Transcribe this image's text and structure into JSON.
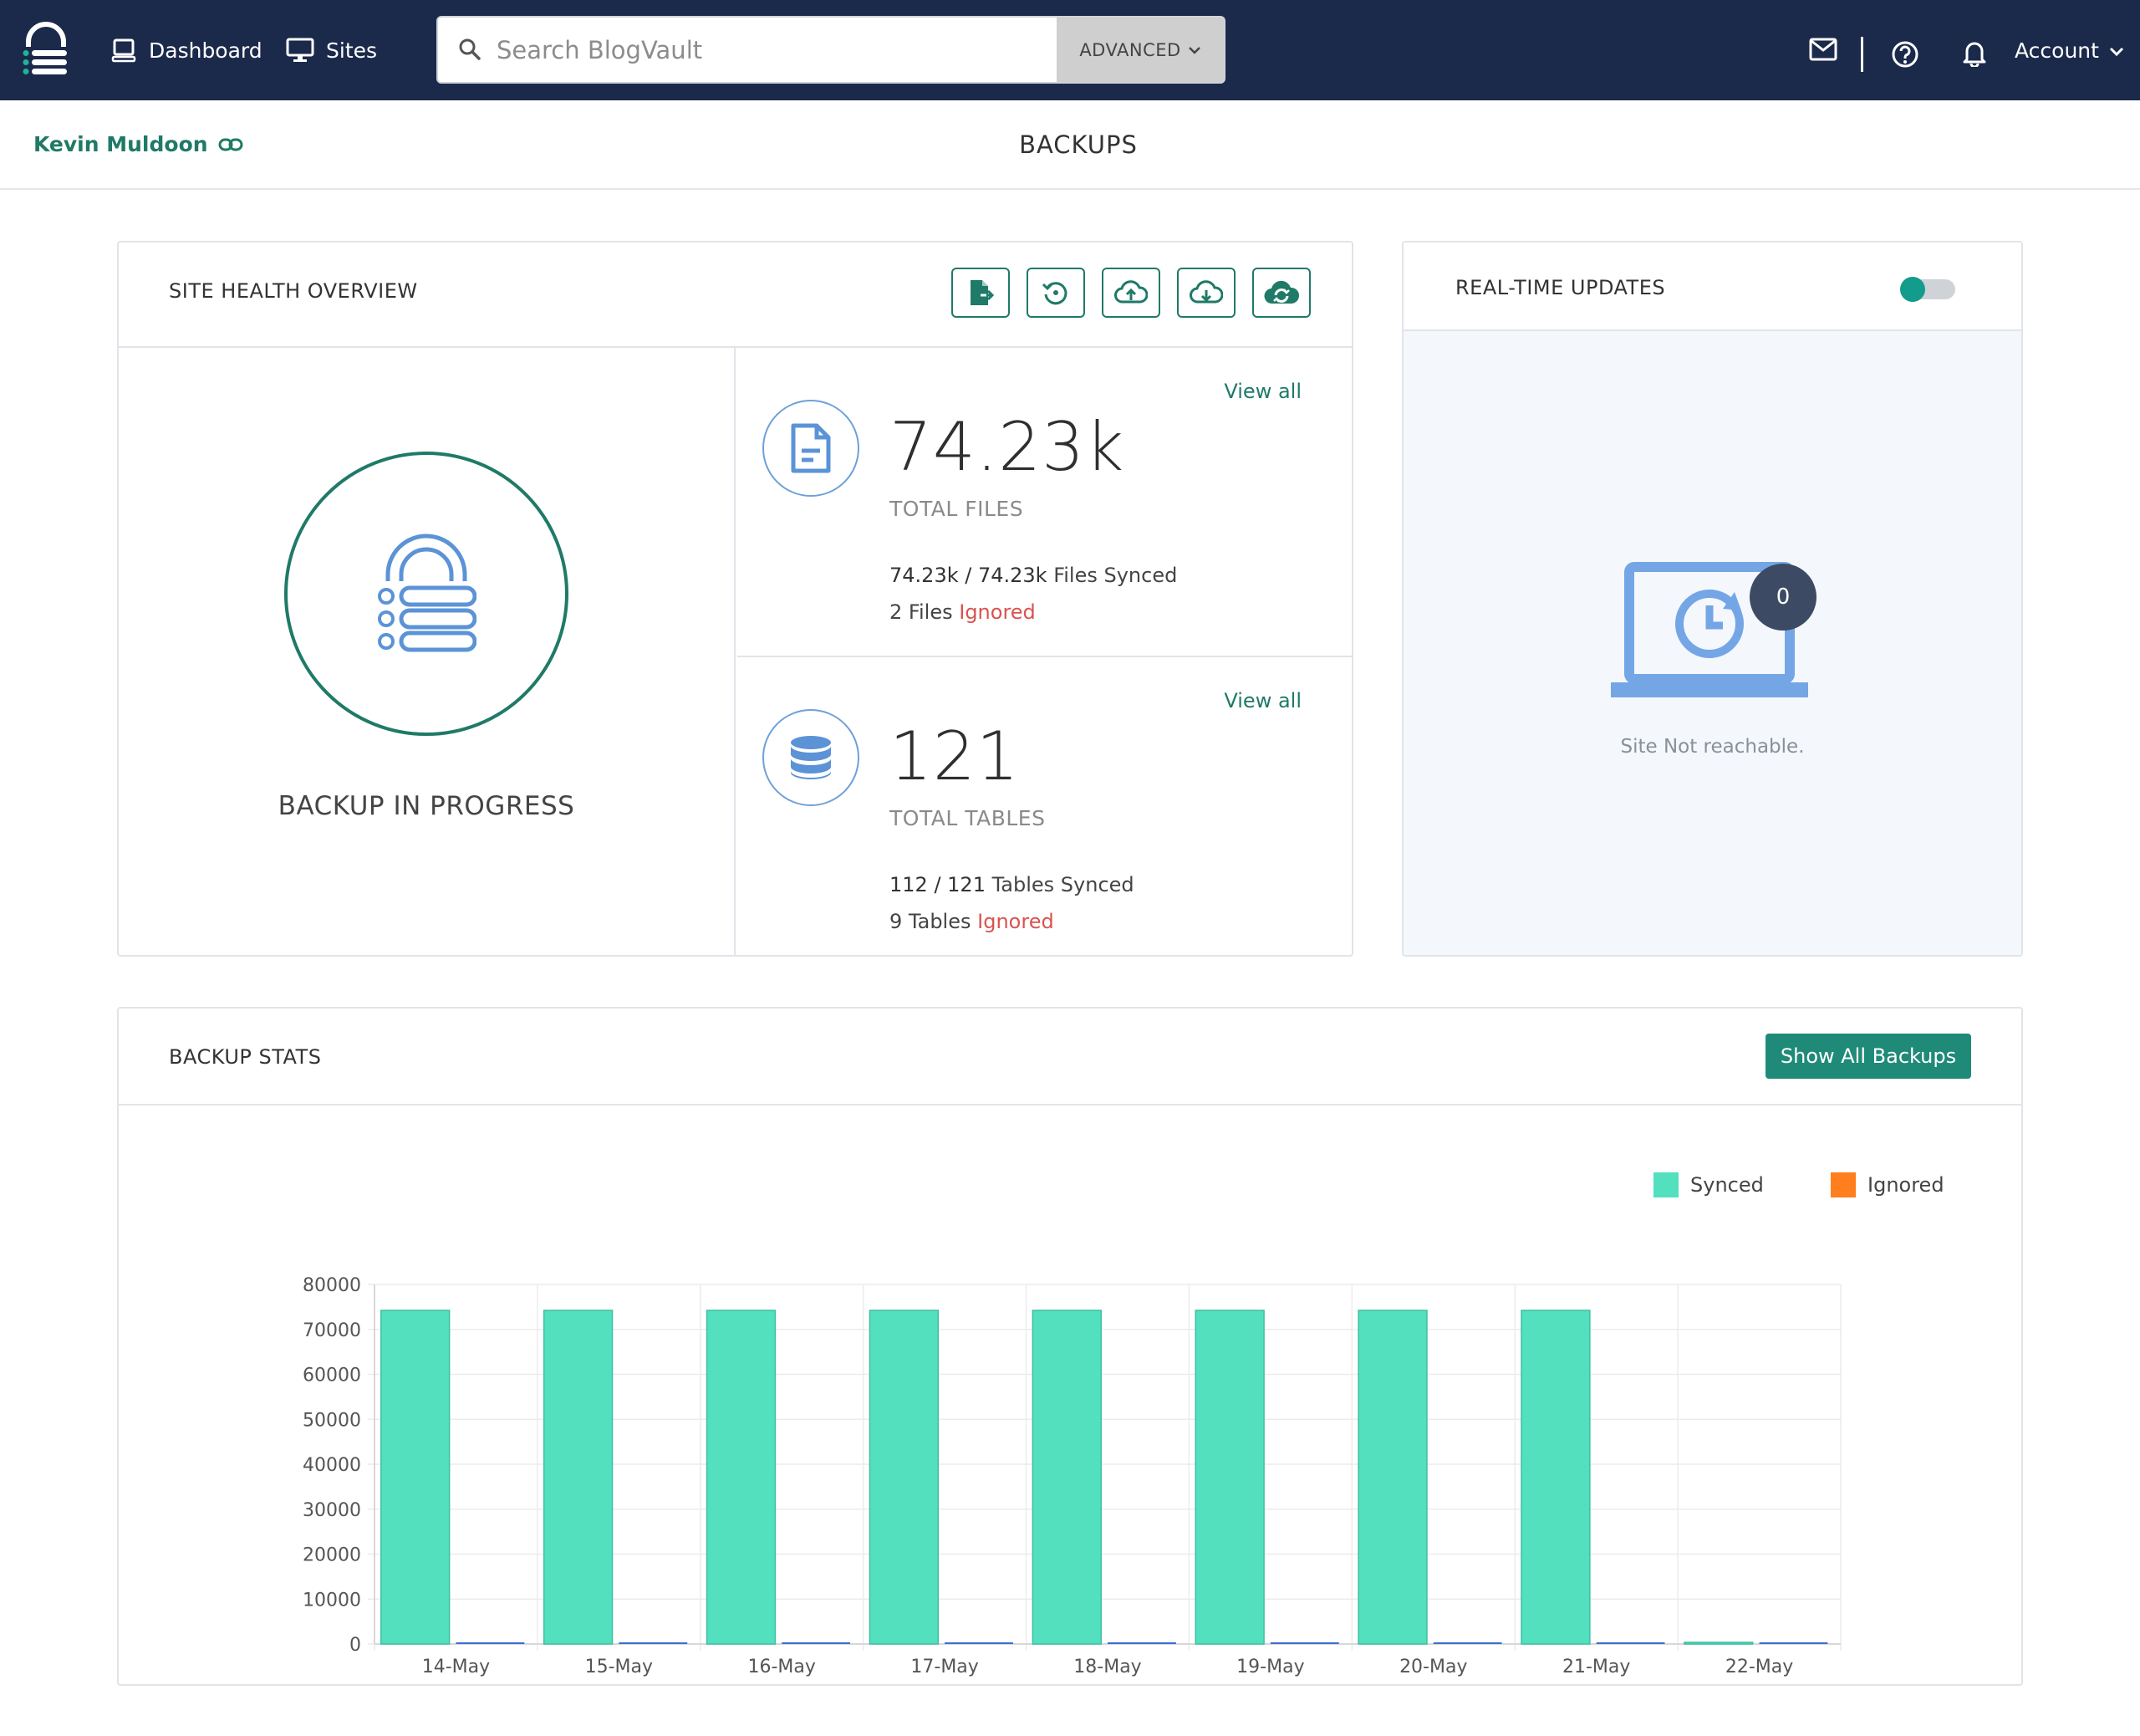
{
  "nav": {
    "dashboard_label": "Dashboard",
    "sites_label": "Sites",
    "search_placeholder": "Search BlogVault",
    "advanced_label": "ADVANCED",
    "account_label": "Account"
  },
  "subheader": {
    "site_name": "Kevin Muldoon",
    "page_title": "BACKUPS"
  },
  "health": {
    "title": "SITE HEALTH OVERVIEW",
    "backup_status": "BACKUP IN PROGRESS",
    "files": {
      "view_all": "View all",
      "value": "74.23k",
      "caption": "TOTAL FILES",
      "synced_count": "74.23k / 74.23k",
      "synced_text": "Files Synced",
      "ignored_count": "2",
      "ignored_unit": "Files",
      "ignored_text": "Ignored"
    },
    "tables": {
      "view_all": "View all",
      "value": "121",
      "caption": "TOTAL TABLES",
      "synced_count": "112 / 121",
      "synced_text": "Tables Synced",
      "ignored_count": "9",
      "ignored_unit": "Tables",
      "ignored_text": "Ignored"
    }
  },
  "realtime": {
    "title": "REAL-TIME UPDATES",
    "toggle_on": false,
    "badge_count": "0",
    "status_text": "Site Not reachable."
  },
  "stats": {
    "title": "BACKUP STATS",
    "show_all_label": "Show All Backups"
  },
  "colors": {
    "nav_bg": "#1b2a4b",
    "accent": "#1f7a67",
    "synced": "#52e0bf",
    "ignored": "#ff7f1e",
    "ignored_text": "#d9534f"
  },
  "chart_data": {
    "type": "bar",
    "categories": [
      "14-May",
      "15-May",
      "16-May",
      "17-May",
      "18-May",
      "19-May",
      "20-May",
      "21-May",
      "22-May"
    ],
    "series": [
      {
        "name": "Synced",
        "color": "#52e0bf",
        "values": [
          74230,
          74230,
          74230,
          74230,
          74230,
          74230,
          74230,
          74230,
          0
        ]
      },
      {
        "name": "Ignored",
        "color": "#ff7f1e",
        "values": [
          2,
          2,
          2,
          2,
          2,
          2,
          2,
          2,
          0
        ]
      }
    ],
    "ylim": [
      0,
      80000
    ],
    "yticks": [
      0,
      10000,
      20000,
      30000,
      40000,
      50000,
      60000,
      70000,
      80000
    ],
    "grid": true,
    "legend": "top-right"
  }
}
